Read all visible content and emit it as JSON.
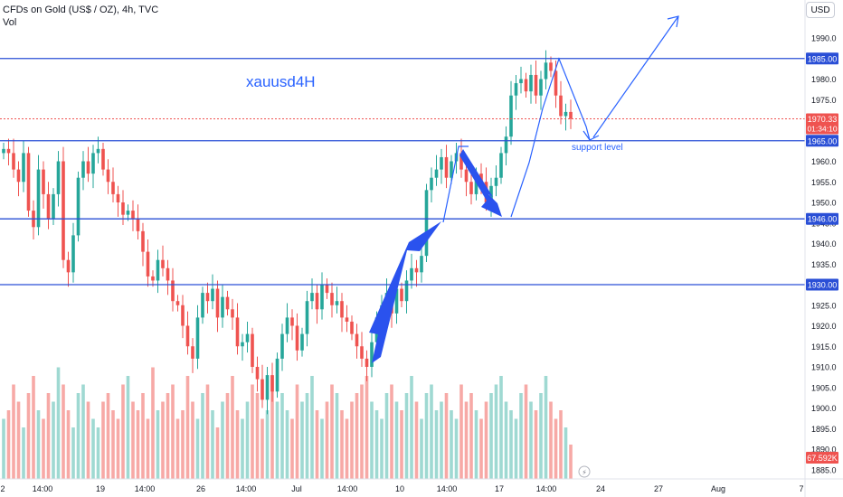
{
  "header": {
    "symbol_title": "CFDs on Gold (US$ / OZ), 4h, TVC",
    "volume_label": "Vol"
  },
  "toolbar": {
    "currency": "USD"
  },
  "annotations": {
    "chart_title": "xauusd4H",
    "support_label": "support level"
  },
  "price_badge": {
    "price": "1970.33",
    "countdown": "01:34:10"
  },
  "volume_badge": "67.592K",
  "colors": {
    "up": "#26a69a",
    "down": "#ef5350",
    "up_volume": "#9fd9d2",
    "down_volume": "#f7a9a6",
    "level_line": "#2a4fd6",
    "drawing": "#2962ff",
    "price_badge": "#ef5350",
    "axis_text": "#131722"
  },
  "chart_data": {
    "type": "candlestick",
    "title": "CFDs on Gold (US$ / OZ), 4h, TVC",
    "y_axis": {
      "range": [
        1883,
        2002
      ],
      "ticks": [
        1885,
        1890,
        1895,
        1900,
        1905,
        1910,
        1915,
        1920,
        1925,
        1930,
        1935,
        1940,
        1945,
        1950,
        1955,
        1960,
        1965,
        1970,
        1975,
        1980,
        1985,
        1990
      ]
    },
    "x_axis_labels": [
      "2",
      "14:00",
      "19",
      "14:00",
      "26",
      "14:00",
      "Jul",
      "14:00",
      "10",
      "14:00",
      "17",
      "14:00",
      "24",
      "27",
      "Aug",
      "7"
    ],
    "horizontal_levels": [
      1985.0,
      1965.0,
      1946.0,
      1930.0
    ],
    "last_price": 1970.33,
    "volume_last": "67.592K",
    "price_path_approx": [
      1963,
      1962,
      1958,
      1955,
      1962,
      1948,
      1944,
      1958,
      1952,
      1946,
      1952,
      1960,
      1936,
      1933,
      1942,
      1956,
      1960,
      1957,
      1962,
      1963,
      1958,
      1955,
      1952,
      1950,
      1947,
      1948,
      1946,
      1943,
      1938,
      1932,
      1931,
      1936,
      1934,
      1931,
      1926,
      1925,
      1920,
      1915,
      1912,
      1922,
      1928,
      1926,
      1929,
      1922,
      1927,
      1924,
      1922,
      1915,
      1916,
      1918,
      1910,
      1907,
      1902,
      1908,
      1904,
      1912,
      1918,
      1922,
      1920,
      1914,
      1918,
      1926,
      1928,
      1924,
      1930,
      1928,
      1925,
      1926,
      1922,
      1921,
      1918,
      1915,
      1912,
      1910,
      1916,
      1922,
      1925,
      1928,
      1923,
      1929,
      1926,
      1931,
      1934,
      1933,
      1937,
      1953,
      1956,
      1958,
      1961,
      1956,
      1960,
      1962,
      1958,
      1955,
      1952,
      1957,
      1955,
      1950,
      1954,
      1956,
      1962,
      1966,
      1976,
      1979,
      1980,
      1977,
      1981,
      1976,
      1980,
      1984,
      1982,
      1976,
      1971,
      1972,
      1970.33
    ],
    "volume_series": [
      {
        "name": "Vol",
        "values_approx": [
          0.35,
          0.4,
          0.55,
          0.45,
          0.3,
          0.5,
          0.6,
          0.4,
          0.35,
          0.5,
          0.45,
          0.65,
          0.55,
          0.4,
          0.3,
          0.5,
          0.55,
          0.45,
          0.35,
          0.3,
          0.45,
          0.5,
          0.4,
          0.35,
          0.55,
          0.6,
          0.45,
          0.4,
          0.5,
          0.35,
          0.65,
          0.4,
          0.45,
          0.5,
          0.55,
          0.35,
          0.4,
          0.6,
          0.45,
          0.35,
          0.5,
          0.55,
          0.4,
          0.3,
          0.45,
          0.5,
          0.6,
          0.4,
          0.35,
          0.45,
          0.55,
          0.5,
          0.35,
          0.4,
          0.6,
          0.45,
          0.5,
          0.4,
          0.35,
          0.55,
          0.45,
          0.5,
          0.6,
          0.4,
          0.35,
          0.45,
          0.55,
          0.5,
          0.4,
          0.35,
          0.45,
          0.5,
          0.55,
          0.6,
          0.45,
          0.4,
          0.35,
          0.5,
          0.55,
          0.45,
          0.4,
          0.5,
          0.6,
          0.45,
          0.35,
          0.5,
          0.55,
          0.4,
          0.45,
          0.5,
          0.4,
          0.35,
          0.55,
          0.45,
          0.5,
          0.4,
          0.35,
          0.45,
          0.5,
          0.55,
          0.6,
          0.45,
          0.4,
          0.35,
          0.5,
          0.55,
          0.45,
          0.4,
          0.5,
          0.6,
          0.45,
          0.35,
          0.4,
          0.3,
          0.2
        ]
      }
    ],
    "grid": false,
    "legend": "top-left"
  }
}
